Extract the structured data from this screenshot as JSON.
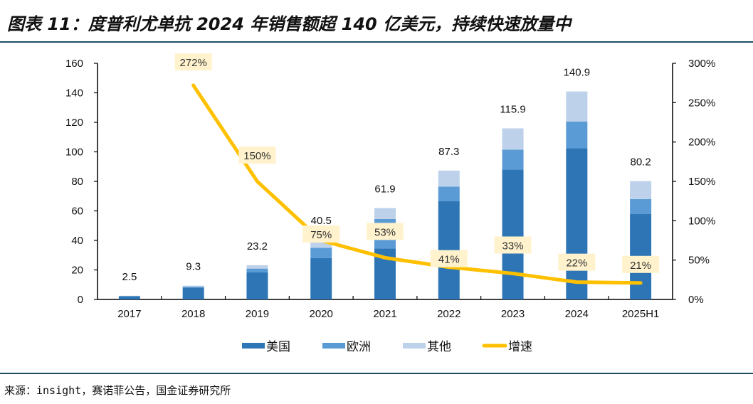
{
  "figure": {
    "title": "图表 11：度普利尤单抗 2024 年销售额超 140 亿美元，持续快速放量中",
    "source": "来源：insight，赛诺菲公告，国金证券研究所"
  },
  "chart_data": {
    "type": "bar",
    "stacked": true,
    "title": "图表 11：度普利尤单抗 2024 年销售额超 140 亿美元，持续快速放量中",
    "categories": [
      "2017",
      "2018",
      "2019",
      "2020",
      "2021",
      "2022",
      "2023",
      "2024",
      "2025H1"
    ],
    "series": [
      {
        "name": "美国",
        "axis": "left",
        "color": "#2e75b6",
        "values": [
          2.2,
          8.0,
          18.3,
          28.0,
          34.5,
          66.5,
          88.0,
          102.5,
          58.0
        ]
      },
      {
        "name": "欧洲",
        "axis": "left",
        "color": "#5b9bd5",
        "values": [
          0.1,
          0.6,
          2.6,
          7.0,
          20.0,
          10.0,
          13.5,
          18.0,
          10.0
        ]
      },
      {
        "name": "其他",
        "axis": "left",
        "color": "#bdd1ea",
        "values": [
          0.2,
          0.7,
          2.3,
          5.5,
          7.4,
          10.8,
          14.4,
          20.4,
          12.2
        ]
      },
      {
        "name": "增速",
        "type": "line",
        "axis": "right",
        "color": "#ffc000",
        "values": [
          null,
          272,
          150,
          75,
          53,
          41,
          33,
          22,
          21
        ]
      }
    ],
    "totals": [
      2.5,
      9.3,
      23.2,
      40.5,
      61.9,
      87.3,
      115.9,
      140.9,
      80.2
    ],
    "total_labels": [
      "2.5",
      "9.3",
      "23.2",
      "40.5",
      "61.9",
      "87.3",
      "115.9",
      "140.9",
      "80.2"
    ],
    "growth_labels": [
      "",
      "272%",
      "150%",
      "75%",
      "53%",
      "41%",
      "33%",
      "22%",
      "21%"
    ],
    "y_left": {
      "ylim": [
        0,
        160
      ],
      "ticks": [
        0,
        20,
        40,
        60,
        80,
        100,
        120,
        140,
        160
      ],
      "tick_labels": [
        "0",
        "20",
        "40",
        "60",
        "80",
        "100",
        "120",
        "140",
        "160"
      ]
    },
    "y_right": {
      "ylim": [
        0,
        300
      ],
      "ticks": [
        0,
        50,
        100,
        150,
        200,
        250,
        300
      ],
      "tick_labels": [
        "0%",
        "50%",
        "100%",
        "150%",
        "200%",
        "250%",
        "300%"
      ]
    },
    "xlabel": "",
    "ylabel": "",
    "grid": false,
    "legend": {
      "placement": "bottom",
      "entries": [
        "美国",
        "欧洲",
        "其他",
        "增速"
      ]
    },
    "colors": {
      "label_box": "#fff2cc",
      "axis": "#000000"
    }
  }
}
